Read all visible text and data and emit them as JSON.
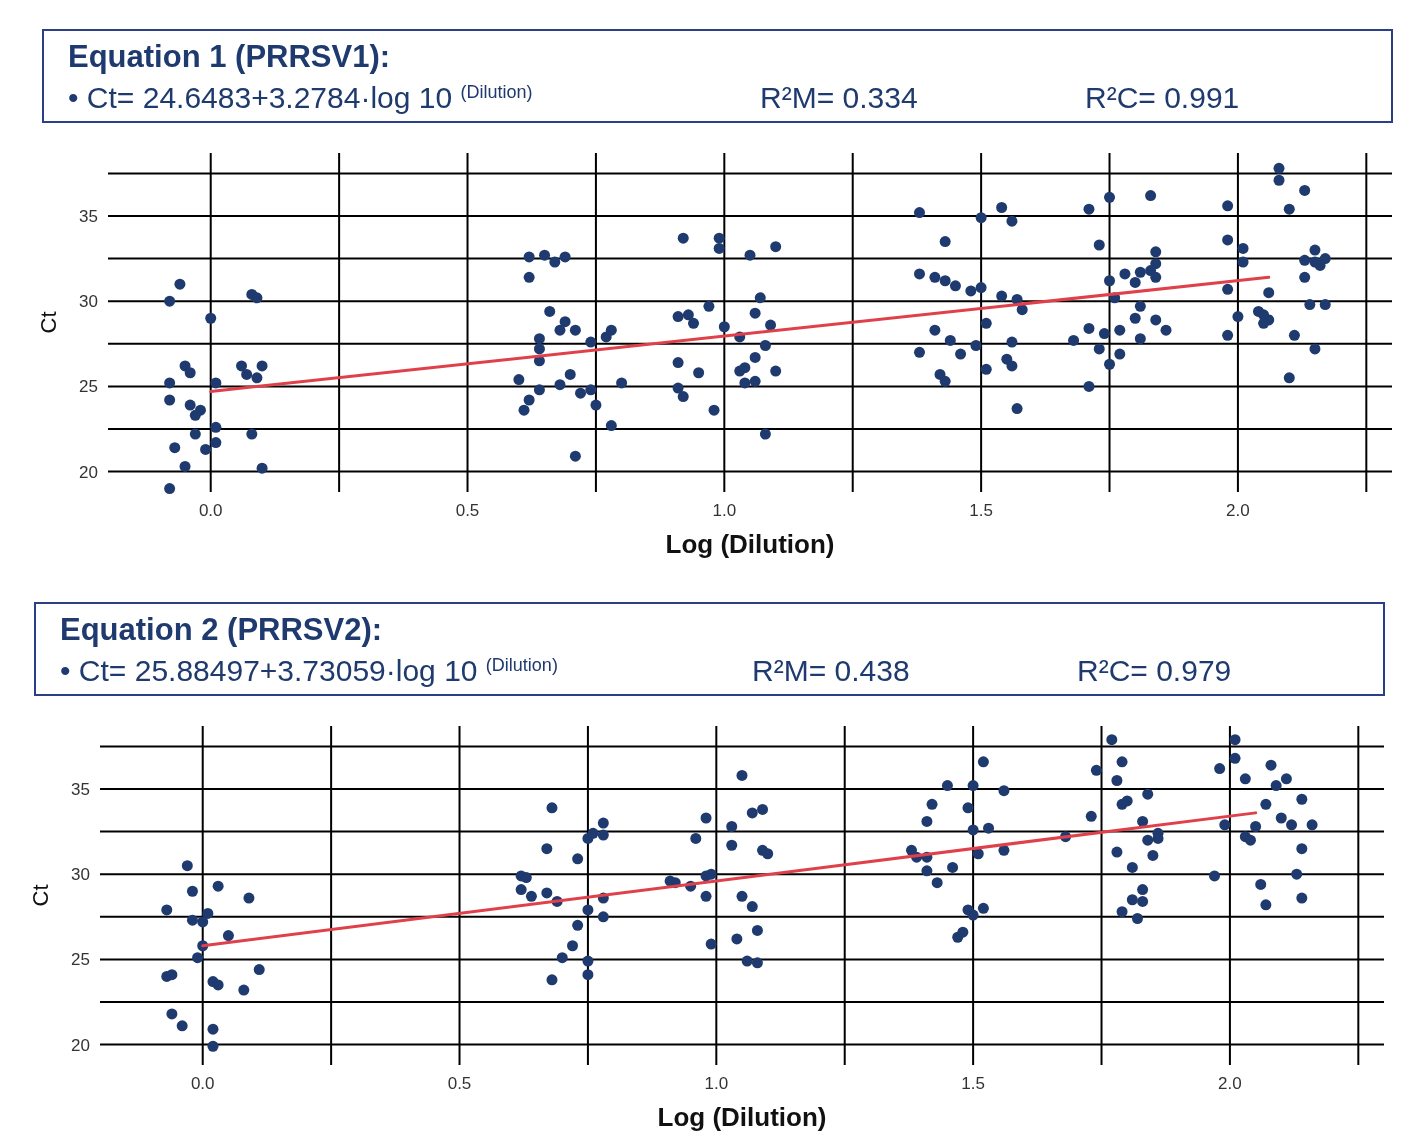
{
  "chart_data": [
    {
      "type": "scatter",
      "title": "Equation 1 (PRRSV1):",
      "annotations": [
        "• Ct= 24.6483+3.2784·log 10 $^{(Dilution)}$",
        "R²M= 0.334",
        "R²C= 0.991"
      ],
      "xlabel": "Log (Dilution)",
      "ylabel": "Ct",
      "xlim": [
        -0.2,
        2.3
      ],
      "ylim": [
        18.8,
        38.7
      ],
      "xticks": [
        {
          "value": 0,
          "label": "0.0"
        },
        {
          "value": 0.25,
          "label": null
        },
        {
          "value": 0.5,
          "label": "0.5"
        },
        {
          "value": 0.75,
          "label": null
        },
        {
          "value": 1,
          "label": "1.0"
        },
        {
          "value": 1.25,
          "label": null
        },
        {
          "value": 1.5,
          "label": "1.5"
        },
        {
          "value": 1.75,
          "label": null
        },
        {
          "value": 2,
          "label": "2.0"
        },
        {
          "value": 2.25,
          "label": null
        }
      ],
      "yticks": [
        20,
        {
          "value": 22.5,
          "label": null
        },
        25,
        {
          "value": 27.5,
          "label": null
        },
        30,
        {
          "value": 32.5,
          "label": null
        },
        35,
        {
          "value": 37.5,
          "label": null
        }
      ],
      "grid": true,
      "series": [
        {
          "type": "scatter",
          "marker": "circle",
          "color": "#1f3a6e",
          "x": [
            -0.06,
            -0.08,
            0.0,
            0.08,
            0.09,
            -0.05,
            -0.04,
            -0.08,
            0.01,
            0.06,
            0.07,
            0.1,
            0.09,
            -0.08,
            -0.04,
            -0.02,
            -0.03,
            0.01,
            -0.03,
            0.08,
            0.01,
            -0.07,
            -0.01,
            -0.05,
            0.1,
            -0.08,
            0.62,
            0.65,
            0.67,
            0.69,
            0.62,
            0.66,
            0.69,
            0.68,
            0.71,
            0.64,
            0.64,
            0.64,
            0.74,
            0.77,
            0.78,
            0.6,
            0.7,
            0.68,
            0.64,
            0.62,
            0.61,
            0.72,
            0.74,
            0.75,
            0.8,
            0.78,
            0.71,
            0.92,
            0.99,
            0.99,
            1.05,
            1.1,
            1.07,
            1.06,
            1.09,
            0.97,
            0.91,
            0.93,
            0.94,
            1.0,
            1.03,
            1.08,
            1.06,
            0.91,
            0.95,
            1.03,
            1.04,
            1.1,
            1.04,
            1.06,
            0.91,
            0.92,
            0.98,
            1.08,
            1.38,
            1.38,
            1.41,
            1.43,
            1.45,
            1.43,
            1.48,
            1.5,
            1.54,
            1.5,
            1.56,
            1.54,
            1.57,
            1.58,
            1.51,
            1.41,
            1.44,
            1.38,
            1.46,
            1.49,
            1.56,
            1.55,
            1.56,
            1.51,
            1.42,
            1.43,
            1.57,
            1.71,
            1.75,
            1.83,
            1.73,
            1.84,
            1.84,
            1.78,
            1.8,
            1.81,
            1.83,
            1.84,
            1.75,
            1.76,
            1.81,
            1.8,
            1.84,
            1.86,
            1.71,
            1.74,
            1.77,
            1.81,
            1.68,
            1.73,
            1.77,
            1.75,
            1.71,
            2.08,
            2.08,
            2.13,
            2.1,
            1.98,
            1.98,
            2.01,
            2.01,
            2.15,
            2.13,
            2.15,
            2.17,
            2.16,
            2.13,
            1.98,
            2.06,
            2.14,
            2.17,
            2.0,
            2.04,
            2.05,
            2.06,
            2.05,
            1.98,
            2.11,
            2.15,
            2.1
          ],
          "values": [
            31.0,
            30.0,
            29.0,
            30.4,
            30.2,
            26.2,
            25.8,
            25.2,
            25.2,
            26.2,
            25.7,
            26.2,
            25.5,
            24.2,
            23.9,
            23.6,
            23.3,
            22.6,
            22.2,
            22.2,
            21.7,
            21.4,
            21.3,
            20.3,
            20.2,
            19.0,
            32.6,
            32.7,
            32.3,
            32.6,
            31.4,
            29.4,
            28.8,
            28.3,
            28.3,
            27.8,
            27.2,
            26.5,
            27.6,
            27.9,
            28.3,
            25.4,
            25.7,
            25.1,
            24.8,
            24.2,
            23.6,
            24.6,
            24.8,
            23.9,
            25.2,
            22.7,
            20.9,
            33.7,
            33.7,
            33.1,
            32.7,
            33.2,
            30.2,
            29.3,
            28.6,
            29.7,
            29.1,
            29.2,
            28.7,
            28.5,
            27.9,
            27.4,
            26.7,
            26.4,
            25.8,
            25.9,
            26.1,
            25.9,
            25.2,
            25.3,
            24.9,
            24.4,
            23.6,
            22.2,
            35.2,
            31.6,
            31.4,
            31.2,
            30.9,
            33.5,
            30.6,
            30.8,
            35.5,
            34.9,
            34.7,
            30.3,
            30.1,
            29.5,
            28.7,
            28.3,
            27.7,
            27.0,
            26.9,
            27.4,
            27.6,
            26.6,
            26.2,
            26.0,
            25.7,
            25.3,
            23.7,
            35.4,
            36.1,
            36.2,
            33.3,
            32.9,
            32.2,
            31.6,
            31.1,
            31.7,
            31.8,
            31.4,
            31.2,
            30.2,
            29.7,
            29.0,
            28.9,
            28.3,
            28.4,
            28.1,
            28.3,
            27.8,
            27.7,
            27.2,
            26.9,
            26.3,
            25.0,
            37.8,
            37.1,
            36.5,
            35.4,
            35.6,
            33.6,
            33.1,
            32.3,
            33.0,
            32.4,
            32.3,
            32.5,
            32.1,
            31.4,
            30.7,
            30.5,
            29.8,
            29.8,
            29.1,
            29.4,
            29.2,
            28.9,
            28.7,
            28.0,
            28.0,
            27.2,
            25.5
          ]
        },
        {
          "type": "line",
          "marker": "none",
          "color": "#e0404a",
          "x": [
            0,
            2.06
          ],
          "values": [
            24.7,
            31.4
          ]
        }
      ]
    },
    {
      "type": "scatter",
      "title": "Equation 2 (PRRSV2):",
      "annotations": [
        "• Ct= 25.88497+3.73059·log 10 $^{(Dilution)}$",
        "R²M= 0.438",
        "R²C= 0.979"
      ],
      "xlabel": "Log (Dilution)",
      "ylabel": "Ct",
      "xlim": [
        -0.2,
        2.3
      ],
      "ylim": [
        18.8,
        38.7
      ],
      "xticks": [
        {
          "value": 0,
          "label": "0.0"
        },
        {
          "value": 0.25,
          "label": null
        },
        {
          "value": 0.5,
          "label": "0.5"
        },
        {
          "value": 0.75,
          "label": null
        },
        {
          "value": 1,
          "label": "1.0"
        },
        {
          "value": 1.25,
          "label": null
        },
        {
          "value": 1.5,
          "label": "1.5"
        },
        {
          "value": 1.75,
          "label": null
        },
        {
          "value": 2,
          "label": "2.0"
        },
        {
          "value": 2.25,
          "label": null
        }
      ],
      "yticks": [
        20,
        {
          "value": 22.5,
          "label": null
        },
        25,
        {
          "value": 27.5,
          "label": null
        },
        30,
        {
          "value": 32.5,
          "label": null
        },
        35,
        {
          "value": 37.5,
          "label": null
        }
      ],
      "grid": true,
      "series": [
        {
          "type": "scatter",
          "marker": "circle",
          "color": "#1f3a6e",
          "x": [
            -0.03,
            -0.02,
            0.03,
            0.09,
            -0.07,
            -0.02,
            0.0,
            0.01,
            0.05,
            0.0,
            -0.01,
            -0.07,
            -0.06,
            0.11,
            0.02,
            0.03,
            0.08,
            -0.06,
            -0.04,
            0.02,
            0.02,
            0.68,
            0.67,
            0.73,
            0.75,
            0.76,
            0.78,
            0.78,
            0.62,
            0.63,
            0.62,
            0.64,
            0.67,
            0.69,
            0.75,
            0.78,
            0.78,
            0.73,
            0.72,
            0.7,
            0.75,
            0.75,
            0.68,
            1.05,
            0.98,
            1.07,
            1.09,
            1.03,
            0.96,
            1.03,
            1.09,
            1.1,
            0.91,
            0.92,
            0.95,
            0.98,
            0.99,
            0.98,
            1.05,
            1.07,
            1.08,
            1.04,
            0.99,
            1.06,
            1.08,
            1.52,
            1.45,
            1.5,
            1.56,
            1.42,
            1.49,
            1.41,
            1.5,
            1.53,
            1.38,
            1.39,
            1.41,
            1.51,
            1.56,
            1.41,
            1.46,
            1.43,
            1.49,
            1.5,
            1.52,
            1.47,
            1.48,
            1.68,
            1.77,
            1.79,
            1.74,
            1.78,
            1.84,
            1.79,
            1.8,
            1.73,
            1.83,
            1.86,
            1.84,
            1.86,
            1.78,
            1.85,
            1.81,
            1.83,
            1.81,
            1.83,
            1.79,
            1.82,
            2.01,
            2.01,
            1.98,
            2.08,
            2.03,
            2.11,
            2.09,
            2.14,
            2.07,
            2.1,
            2.12,
            2.16,
            1.99,
            2.05,
            2.03,
            2.04,
            2.14,
            1.97,
            2.13,
            2.06,
            2.07,
            2.14
          ],
          "values": [
            30.5,
            29.0,
            29.3,
            28.6,
            27.9,
            27.3,
            27.2,
            27.7,
            26.4,
            25.8,
            25.1,
            24.0,
            24.1,
            24.4,
            23.7,
            23.5,
            23.2,
            21.8,
            21.1,
            20.9,
            19.9,
            33.9,
            31.5,
            30.9,
            32.1,
            32.4,
            33.0,
            32.3,
            29.9,
            29.8,
            29.1,
            28.7,
            28.9,
            28.4,
            27.9,
            28.6,
            27.5,
            27.0,
            25.8,
            25.1,
            24.9,
            24.1,
            23.8,
            35.8,
            33.3,
            33.6,
            33.8,
            32.8,
            32.1,
            31.7,
            31.4,
            31.2,
            29.6,
            29.5,
            29.3,
            29.9,
            30.0,
            28.7,
            28.7,
            28.1,
            26.7,
            26.2,
            25.9,
            24.9,
            24.8,
            36.6,
            35.2,
            35.2,
            34.9,
            34.1,
            33.9,
            33.1,
            32.6,
            32.7,
            31.4,
            31.0,
            31.0,
            31.2,
            31.4,
            30.2,
            30.4,
            29.5,
            27.9,
            27.6,
            28.0,
            26.3,
            26.6,
            32.2,
            37.9,
            36.6,
            36.1,
            35.5,
            34.7,
            34.1,
            34.3,
            33.4,
            33.1,
            32.4,
            32.0,
            32.1,
            31.3,
            31.1,
            30.4,
            29.1,
            28.5,
            28.4,
            27.8,
            27.4,
            37.9,
            36.8,
            36.2,
            36.4,
            35.6,
            35.6,
            35.2,
            34.4,
            34.1,
            33.3,
            32.9,
            32.9,
            32.9,
            32.8,
            32.2,
            32.0,
            31.5,
            29.9,
            30.0,
            29.4,
            28.2,
            28.6
          ]
        },
        {
          "type": "line",
          "marker": "none",
          "color": "#e0404a",
          "x": [
            0,
            2.05
          ],
          "values": [
            25.8,
            33.6
          ]
        }
      ]
    }
  ]
}
